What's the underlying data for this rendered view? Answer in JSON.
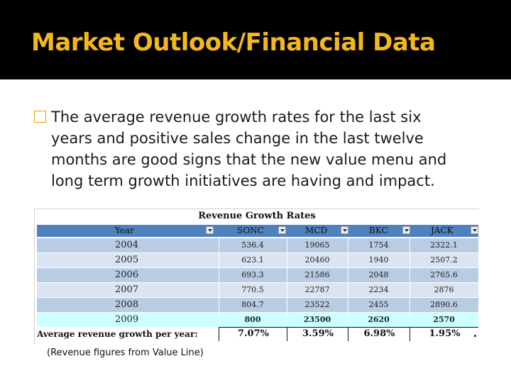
{
  "slide": {
    "title": "Market Outlook/Financial Data",
    "bullet": {
      "icon": "checkbox-bullet-icon",
      "lines": [
        "The average revenue growth rates for the last six",
        "years and positive sales change in the last twelve",
        "months are good signs that the new value menu and",
        "long term growth initiatives are having and impact."
      ]
    },
    "footnote": "(Revenue figures from Value Line)"
  },
  "colors": {
    "title": "#f5b81c",
    "header_bg": "#4f81bd",
    "row_a": "#b8cce4",
    "row_b": "#dbe5f1",
    "row_highlight": "#ccffff"
  },
  "table": {
    "title": "Revenue Growth Rates",
    "headers": [
      "Year",
      "SONC",
      "MCD",
      "BKC",
      "JACK"
    ],
    "rows": [
      [
        "2004",
        "536.4",
        "19065",
        "1754",
        "2322.1"
      ],
      [
        "2005",
        "623.1",
        "20460",
        "1940",
        "2507.2"
      ],
      [
        "2006",
        "693.3",
        "21586",
        "2048",
        "2765.6"
      ],
      [
        "2007",
        "770.5",
        "22787",
        "2234",
        "2876"
      ],
      [
        "2008",
        "804.7",
        "23522",
        "2455",
        "2890.6"
      ],
      [
        "2009",
        "800",
        "23500",
        "2620",
        "2570"
      ]
    ],
    "average_label": "Average revenue growth per year:",
    "averages": [
      "7.07%",
      "3.59%",
      "6.98%",
      "1.95%"
    ]
  }
}
